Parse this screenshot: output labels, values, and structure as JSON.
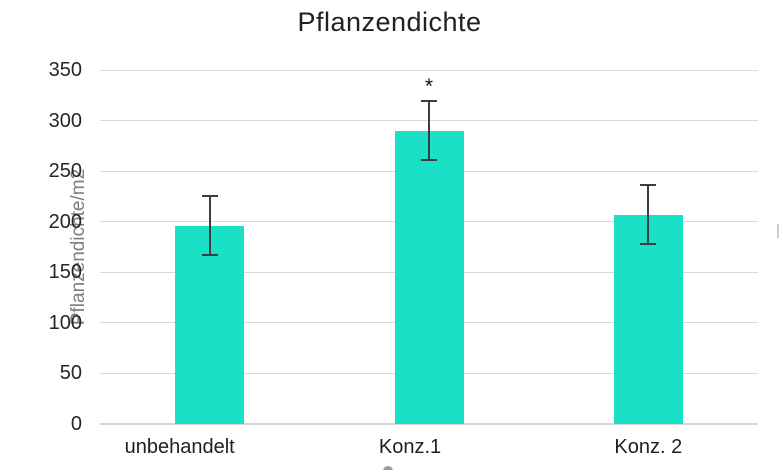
{
  "chart_data": {
    "type": "bar",
    "title": "Pflanzendichte",
    "xlabel": "",
    "ylabel": "Pflanzendichte/m2",
    "categories": [
      "unbehandelt",
      "Konz.1",
      "Konz. 2"
    ],
    "values": [
      196,
      290,
      207
    ],
    "errors": [
      30,
      30,
      30
    ],
    "annotations": [
      {
        "category": "Konz.1",
        "text": "*",
        "position": "above-error-bar"
      }
    ],
    "ylim": [
      0,
      350
    ],
    "yticks": [
      0,
      50,
      100,
      150,
      200,
      250,
      300,
      350
    ],
    "grid": "horizontal-only",
    "legend": "none",
    "bar_color": "#1AE0C8",
    "error_bar_color": "#3D3D3D",
    "gridline_color": "#D9D9D9",
    "tick_label_color": "#262626",
    "axis_title_color": "#7F7F7F",
    "title_color": "#212121",
    "background_color": "#FFFFFF"
  }
}
